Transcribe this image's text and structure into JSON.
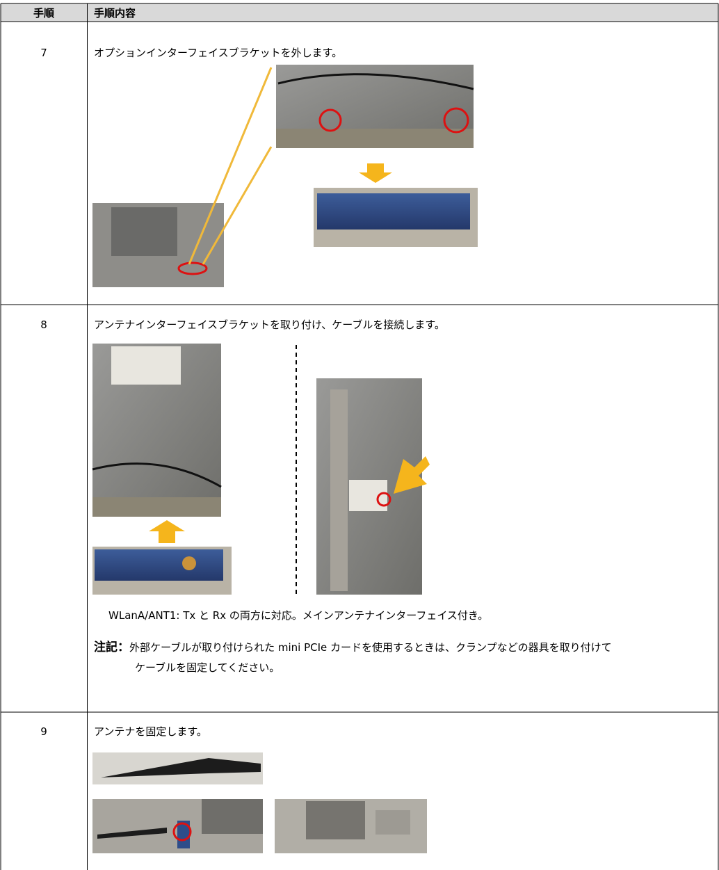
{
  "header": {
    "step": "手順",
    "content": "手順内容"
  },
  "rows": [
    {
      "step": "7",
      "text": "オプションインターフェイスブラケットを外します。"
    },
    {
      "step": "8",
      "text": "アンテナインターフェイスブラケットを取り付け、ケーブルを接続します。",
      "caption": "WLanA/ANT1: Tx と Rx の両方に対応。メインアンテナインターフェイス付き。",
      "note_label": "注記：",
      "note": "外部ケーブルが取り付けられた mini PCIe カードを使用するときは、クランプなどの器具を取り付けてケーブルを固定してください。"
    },
    {
      "step": "9",
      "text": "アンテナを固定します。"
    }
  ]
}
